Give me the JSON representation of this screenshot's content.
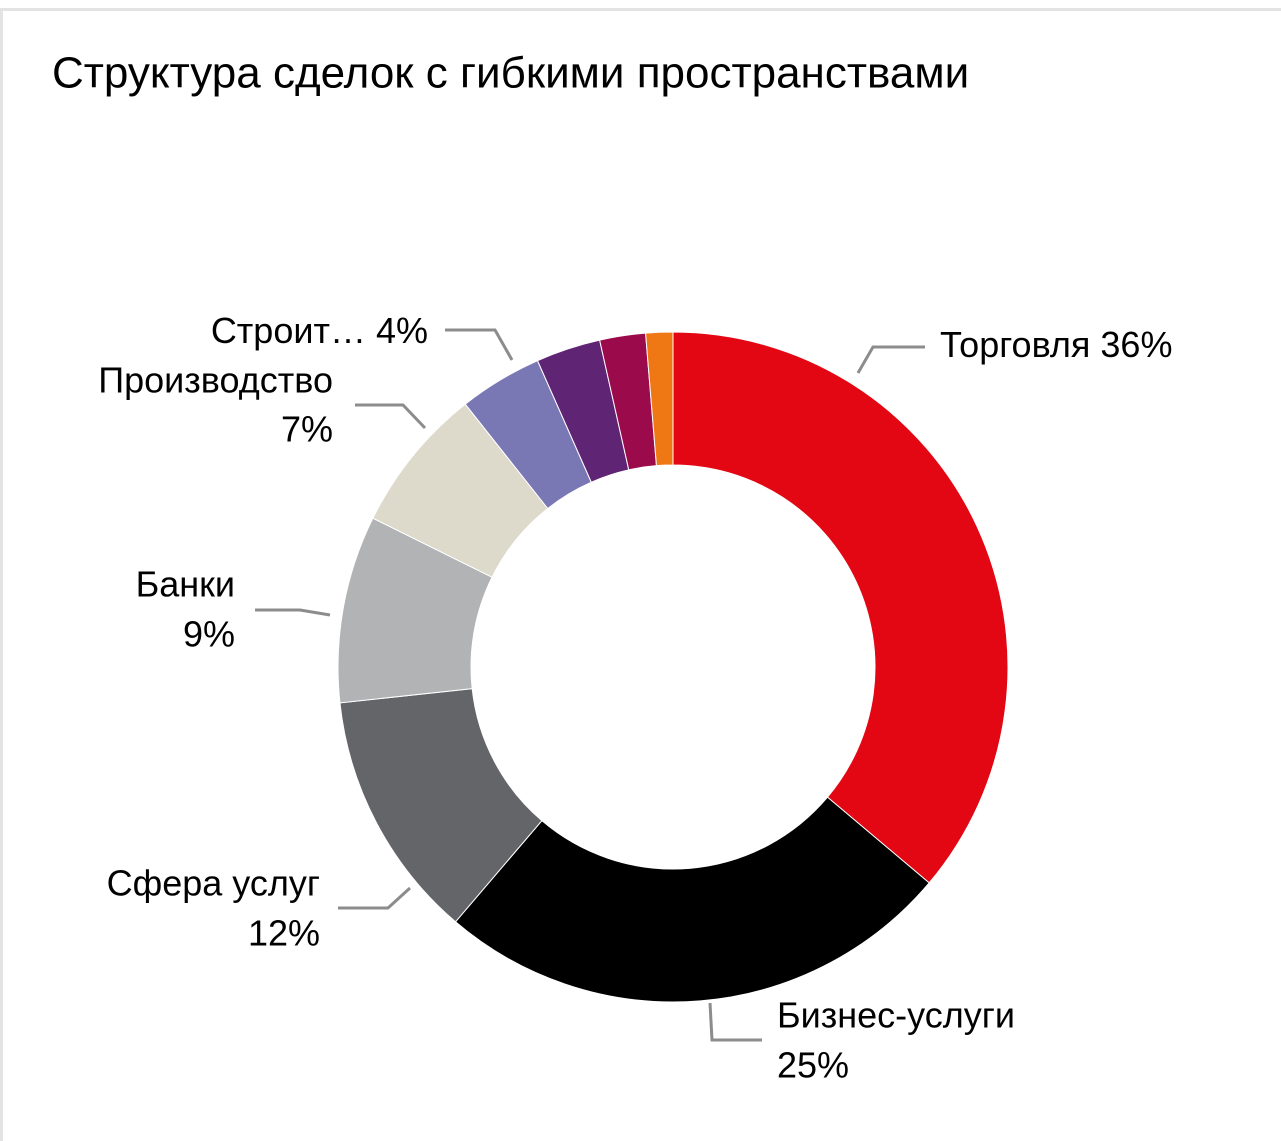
{
  "chart_data": {
    "type": "donut",
    "title": "Структура сделок с гибкими пространствами",
    "categories": [
      "Торговля",
      "Бизнес-услуги",
      "Сфера услуг",
      "Банки",
      "Производство",
      "Строит…",
      null,
      null,
      null
    ],
    "values": [
      36,
      25,
      12,
      9,
      7,
      4,
      3.1,
      2.2,
      1.3
    ],
    "value_labels": [
      "36%",
      "25%",
      "12%",
      "9%",
      "7%",
      "4%",
      null,
      null,
      null
    ],
    "colors": [
      "#e30613",
      "#000000",
      "#636569",
      "#b1b3b4",
      "#ddd9cb",
      "#7a77b5",
      "#5f2474",
      "#9b0a4b",
      "#f07814"
    ]
  }
}
